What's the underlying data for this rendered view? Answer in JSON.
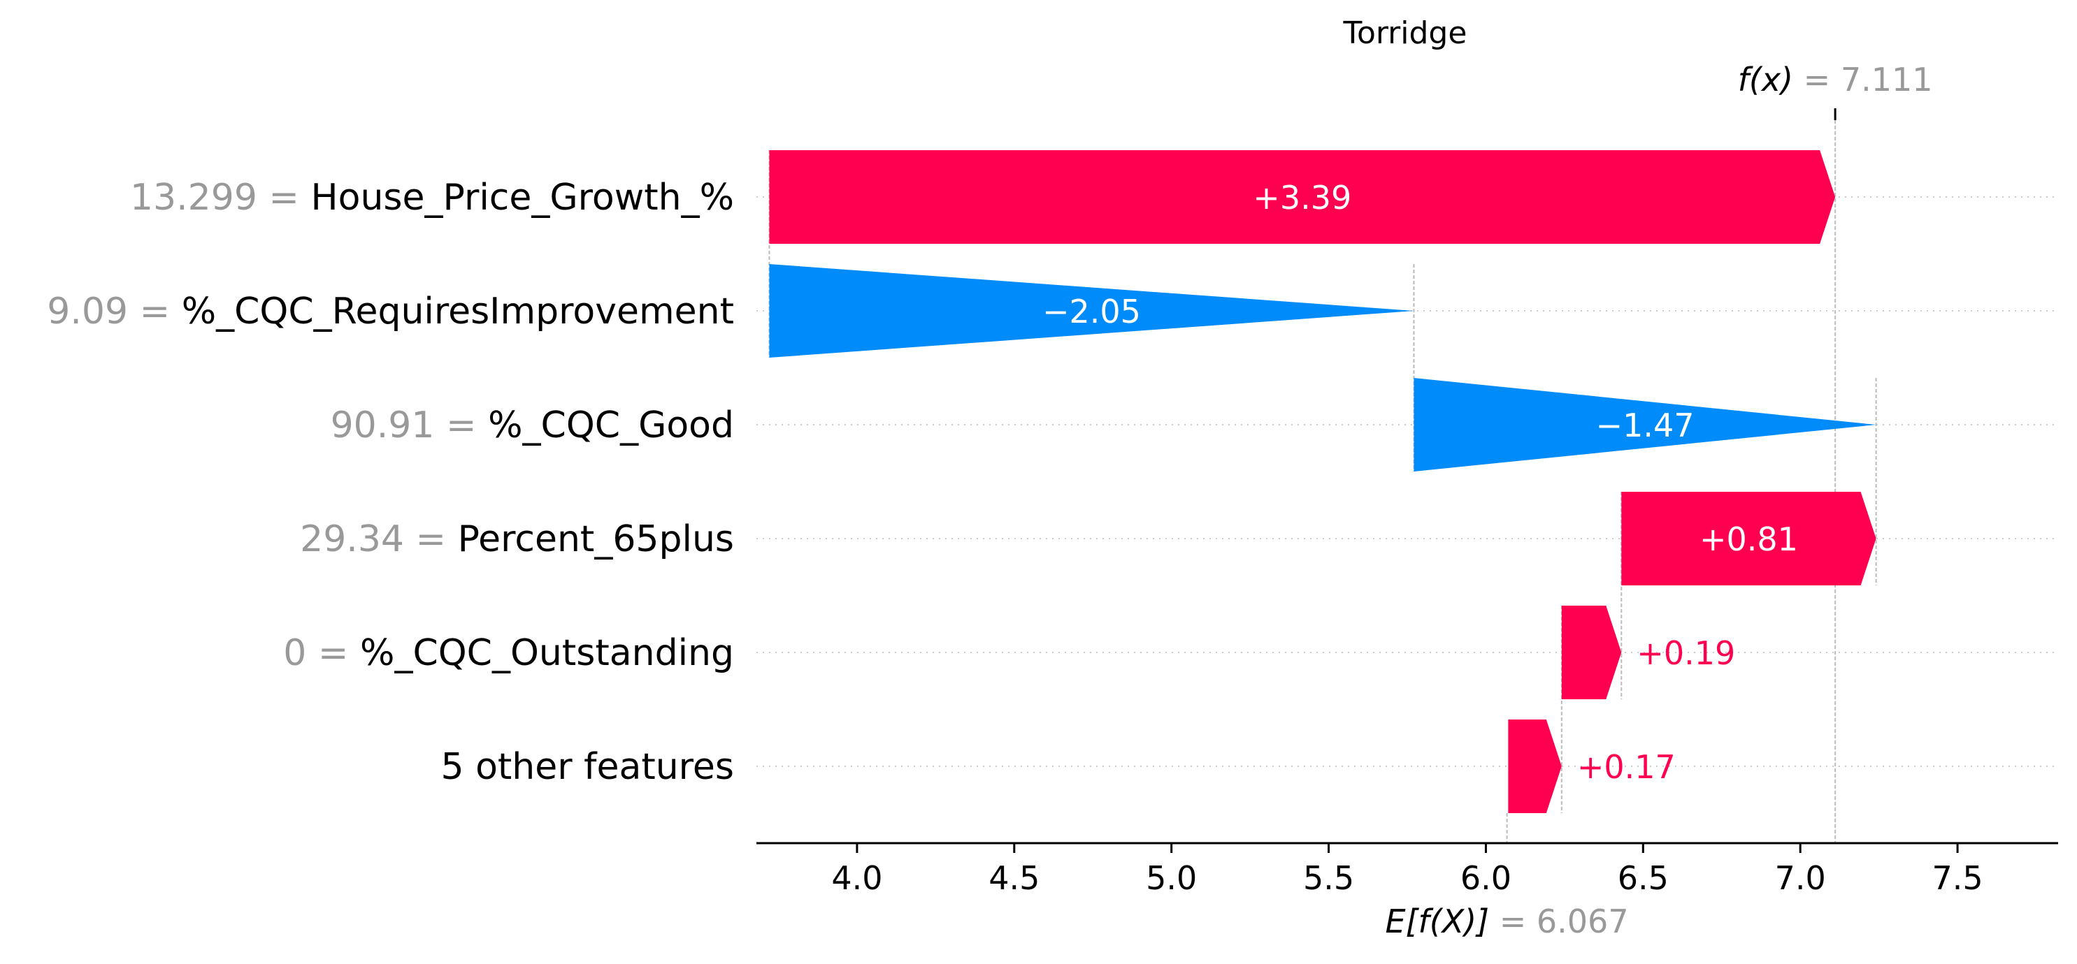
{
  "chart_data": {
    "type": "waterfall",
    "title": "Torridge",
    "xlim": [
      3.68,
      7.82
    ],
    "xticks": [
      "4.0",
      "4.5",
      "5.0",
      "5.5",
      "6.0",
      "6.5",
      "7.0",
      "7.5"
    ],
    "base_value": 6.067,
    "output_value": 7.111,
    "output_label": {
      "prefix": "f(x)",
      "value": "= 7.111"
    },
    "base_label": {
      "prefix": "E[f(X)]",
      "value": "= 6.067"
    },
    "features": [
      {
        "value": "13.299",
        "name": "House_Price_Growth_%",
        "contribution": 3.39,
        "label": "+3.39"
      },
      {
        "value": "9.09",
        "name": "%_CQC_RequiresImprovement",
        "contribution": -2.05,
        "label": "−2.05"
      },
      {
        "value": "90.91",
        "name": "%_CQC_Good",
        "contribution": -1.47,
        "label": "−1.47"
      },
      {
        "value": "29.34",
        "name": "Percent_65plus",
        "contribution": 0.81,
        "label": "+0.81"
      },
      {
        "value": "0",
        "name": "%_CQC_Outstanding",
        "contribution": 0.19,
        "label": "+0.19"
      },
      {
        "value": "",
        "name": "5 other features",
        "contribution": 0.17,
        "label": "+0.17"
      }
    ],
    "colors": {
      "positive": "#ff0051",
      "negative": "#008bfb",
      "muted": "#999999",
      "text": "#000000"
    },
    "grid": false
  }
}
